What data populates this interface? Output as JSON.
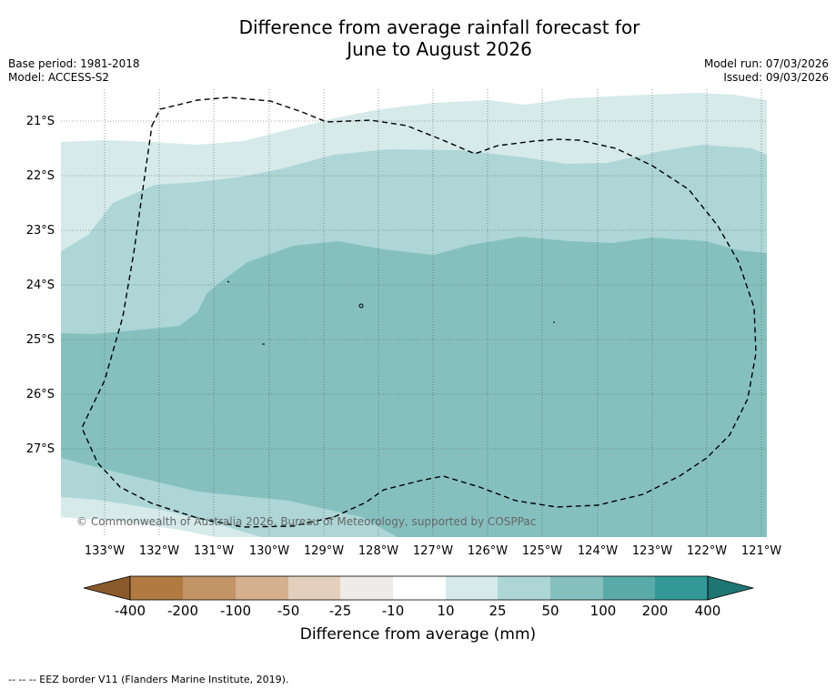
{
  "title_line1": "Difference from average rainfall forecast for",
  "title_line2": "June to August 2026",
  "base_period": "Base period: 1981-2018",
  "model": "Model: ACCESS-S2",
  "model_run": "Model run: 07/03/2026",
  "issued": "Issued: 09/03/2026",
  "lat_labels": [
    "21°S",
    "22°S",
    "23°S",
    "24°S",
    "25°S",
    "26°S",
    "27°S"
  ],
  "lon_labels": [
    "133°W",
    "132°W",
    "131°W",
    "130°W",
    "129°W",
    "128°W",
    "127°W",
    "126°W",
    "125°W",
    "124°W",
    "123°W",
    "122°W",
    "121°W"
  ],
  "copyright": "© Commonwealth of Australia 2026, Bureau of Meteorology, supported by COSPPac",
  "colorbar": {
    "ticks": [
      "-400",
      "-200",
      "-100",
      "-50",
      "-25",
      "-10",
      "10",
      "25",
      "50",
      "100",
      "200",
      "400"
    ],
    "colors": [
      "#b07a41",
      "#c29466",
      "#d4b08f",
      "#e3cfbb",
      "#eeece9",
      "#ffffff",
      "#d6eaea",
      "#aed6d6",
      "#85c0bf",
      "#5aaaa9",
      "#349896"
    ],
    "under_color": "#8a5a2c",
    "over_color": "#1f7573",
    "label": "Difference from average (mm)"
  },
  "colors": {
    "level_10_25": "#d6eaea",
    "level_25_50": "#aed6d6",
    "level_50_100": "#85c0bf"
  },
  "footnote": "--  --  -- EEZ border V11 (Flanders Marine Institute, 2019)."
}
